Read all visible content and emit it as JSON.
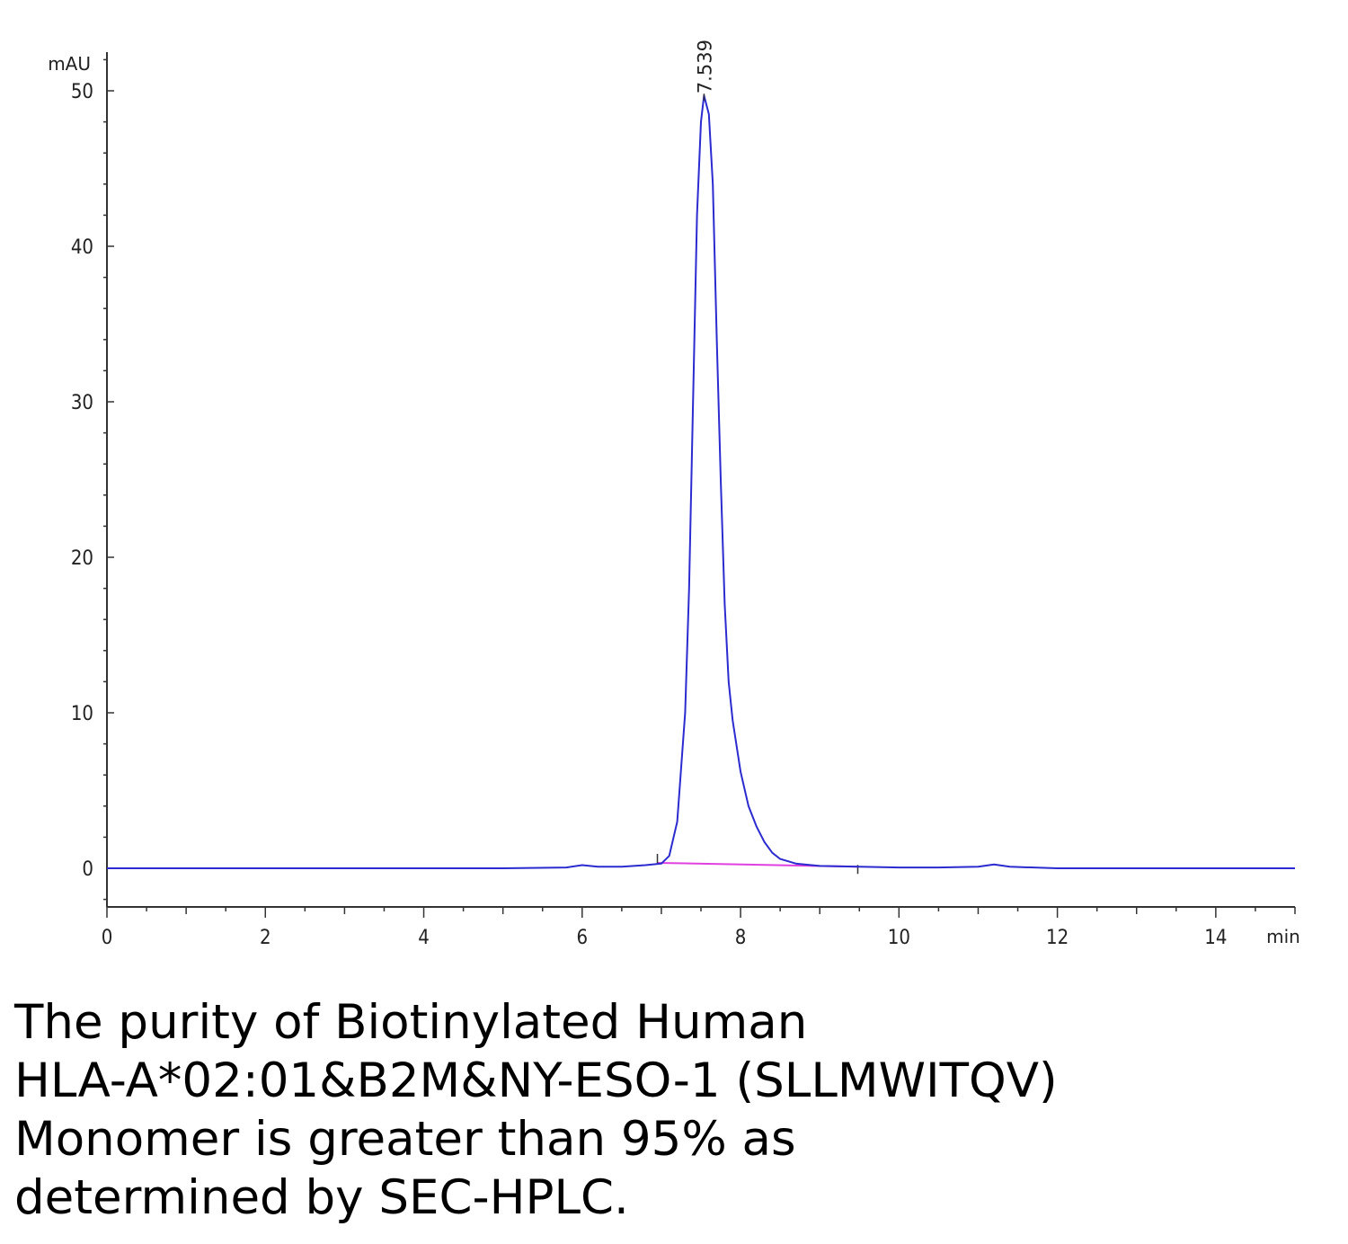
{
  "chart_data": {
    "type": "line",
    "title": "",
    "xlabel": "min",
    "ylabel": "mAU",
    "xlim": [
      0,
      15
    ],
    "ylim": [
      -2.5,
      52.5
    ],
    "x_ticks": [
      0,
      2,
      4,
      6,
      8,
      10,
      12,
      14
    ],
    "y_ticks": [
      0,
      10,
      20,
      30,
      40,
      50
    ],
    "grid": false,
    "legend": "none",
    "series": [
      {
        "color": "#2b2bd0",
        "points": [
          [
            0,
            0.0
          ],
          [
            1,
            0.0
          ],
          [
            2,
            0.0
          ],
          [
            3,
            0.0
          ],
          [
            4,
            0.0
          ],
          [
            5,
            0.0
          ],
          [
            5.8,
            0.05
          ],
          [
            6.0,
            0.2
          ],
          [
            6.2,
            0.1
          ],
          [
            6.5,
            0.1
          ],
          [
            6.8,
            0.2
          ],
          [
            7.0,
            0.3
          ],
          [
            7.1,
            0.8
          ],
          [
            7.2,
            3.0
          ],
          [
            7.3,
            10.0
          ],
          [
            7.35,
            18.0
          ],
          [
            7.4,
            30.0
          ],
          [
            7.45,
            42.0
          ],
          [
            7.5,
            48.0
          ],
          [
            7.539,
            49.7
          ],
          [
            7.6,
            48.5
          ],
          [
            7.65,
            44.0
          ],
          [
            7.7,
            34.0
          ],
          [
            7.75,
            25.0
          ],
          [
            7.8,
            17.0
          ],
          [
            7.85,
            12.0
          ],
          [
            7.9,
            9.5
          ],
          [
            8.0,
            6.2
          ],
          [
            8.1,
            4.0
          ],
          [
            8.2,
            2.7
          ],
          [
            8.3,
            1.7
          ],
          [
            8.4,
            1.0
          ],
          [
            8.5,
            0.6
          ],
          [
            8.7,
            0.3
          ],
          [
            9.0,
            0.15
          ],
          [
            9.5,
            0.1
          ],
          [
            10.0,
            0.05
          ],
          [
            10.5,
            0.05
          ],
          [
            11.0,
            0.1
          ],
          [
            11.2,
            0.25
          ],
          [
            11.4,
            0.1
          ],
          [
            12.0,
            0.0
          ],
          [
            13.0,
            0.0
          ],
          [
            14.0,
            0.0
          ],
          [
            15.0,
            0.0
          ]
        ]
      }
    ],
    "baseline": {
      "color": "#e040e0",
      "x0": 6.95,
      "y0": 0.35,
      "x1": 9.48,
      "y1": 0.1
    },
    "peak_annotations": [
      {
        "label": "7.539",
        "x": 7.539,
        "y": 49.7
      }
    ]
  },
  "caption": {
    "line1": "The purity of Biotinylated Human",
    "line2": "HLA-A*02:01&B2M&NY-ESO-1 (SLLMWITQV)",
    "line3": "Monomer is greater than 95% as",
    "line4": "determined by SEC-HPLC."
  }
}
